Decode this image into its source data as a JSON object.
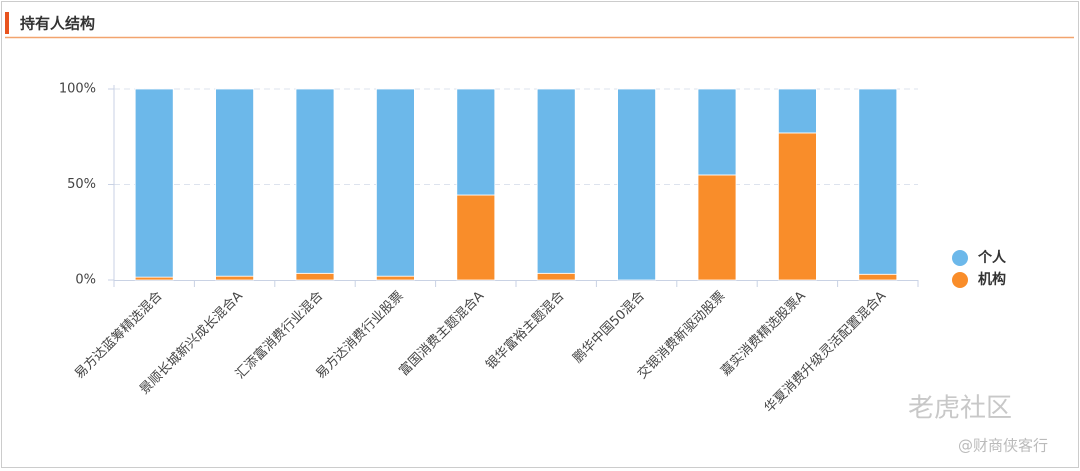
{
  "header": {
    "title": "持有人结构"
  },
  "chart_data": {
    "type": "bar",
    "stacked": true,
    "categories": [
      "易方达蓝筹精选混合",
      "景顺长城新兴成长混合A",
      "汇添富消费行业混合",
      "易方达消费行业股票",
      "富国消费主题混合A",
      "银华富裕主题混合",
      "鹏华中国50混合",
      "交银消费新驱动股票",
      "嘉实消费精选股票A",
      "华夏消费升级灵活配置混合A"
    ],
    "series": [
      {
        "name": "个人",
        "color": "#6cb8ea",
        "values": [
          98.5,
          98,
          96.5,
          98,
          55.5,
          96.5,
          100,
          45,
          23,
          97
        ]
      },
      {
        "name": "机构",
        "color": "#f98d2a",
        "values": [
          1.5,
          2,
          3.5,
          2,
          44.5,
          3.5,
          0,
          55,
          77,
          3
        ]
      }
    ],
    "ylim": [
      0,
      100
    ],
    "yticks": [
      {
        "value": 0,
        "label": "0%"
      },
      {
        "value": 50,
        "label": "50%"
      },
      {
        "value": 100,
        "label": "100%"
      }
    ],
    "grid": true,
    "legend": "right"
  },
  "watermark": {
    "brand": "老虎社区",
    "author": "@财商侠客行"
  }
}
